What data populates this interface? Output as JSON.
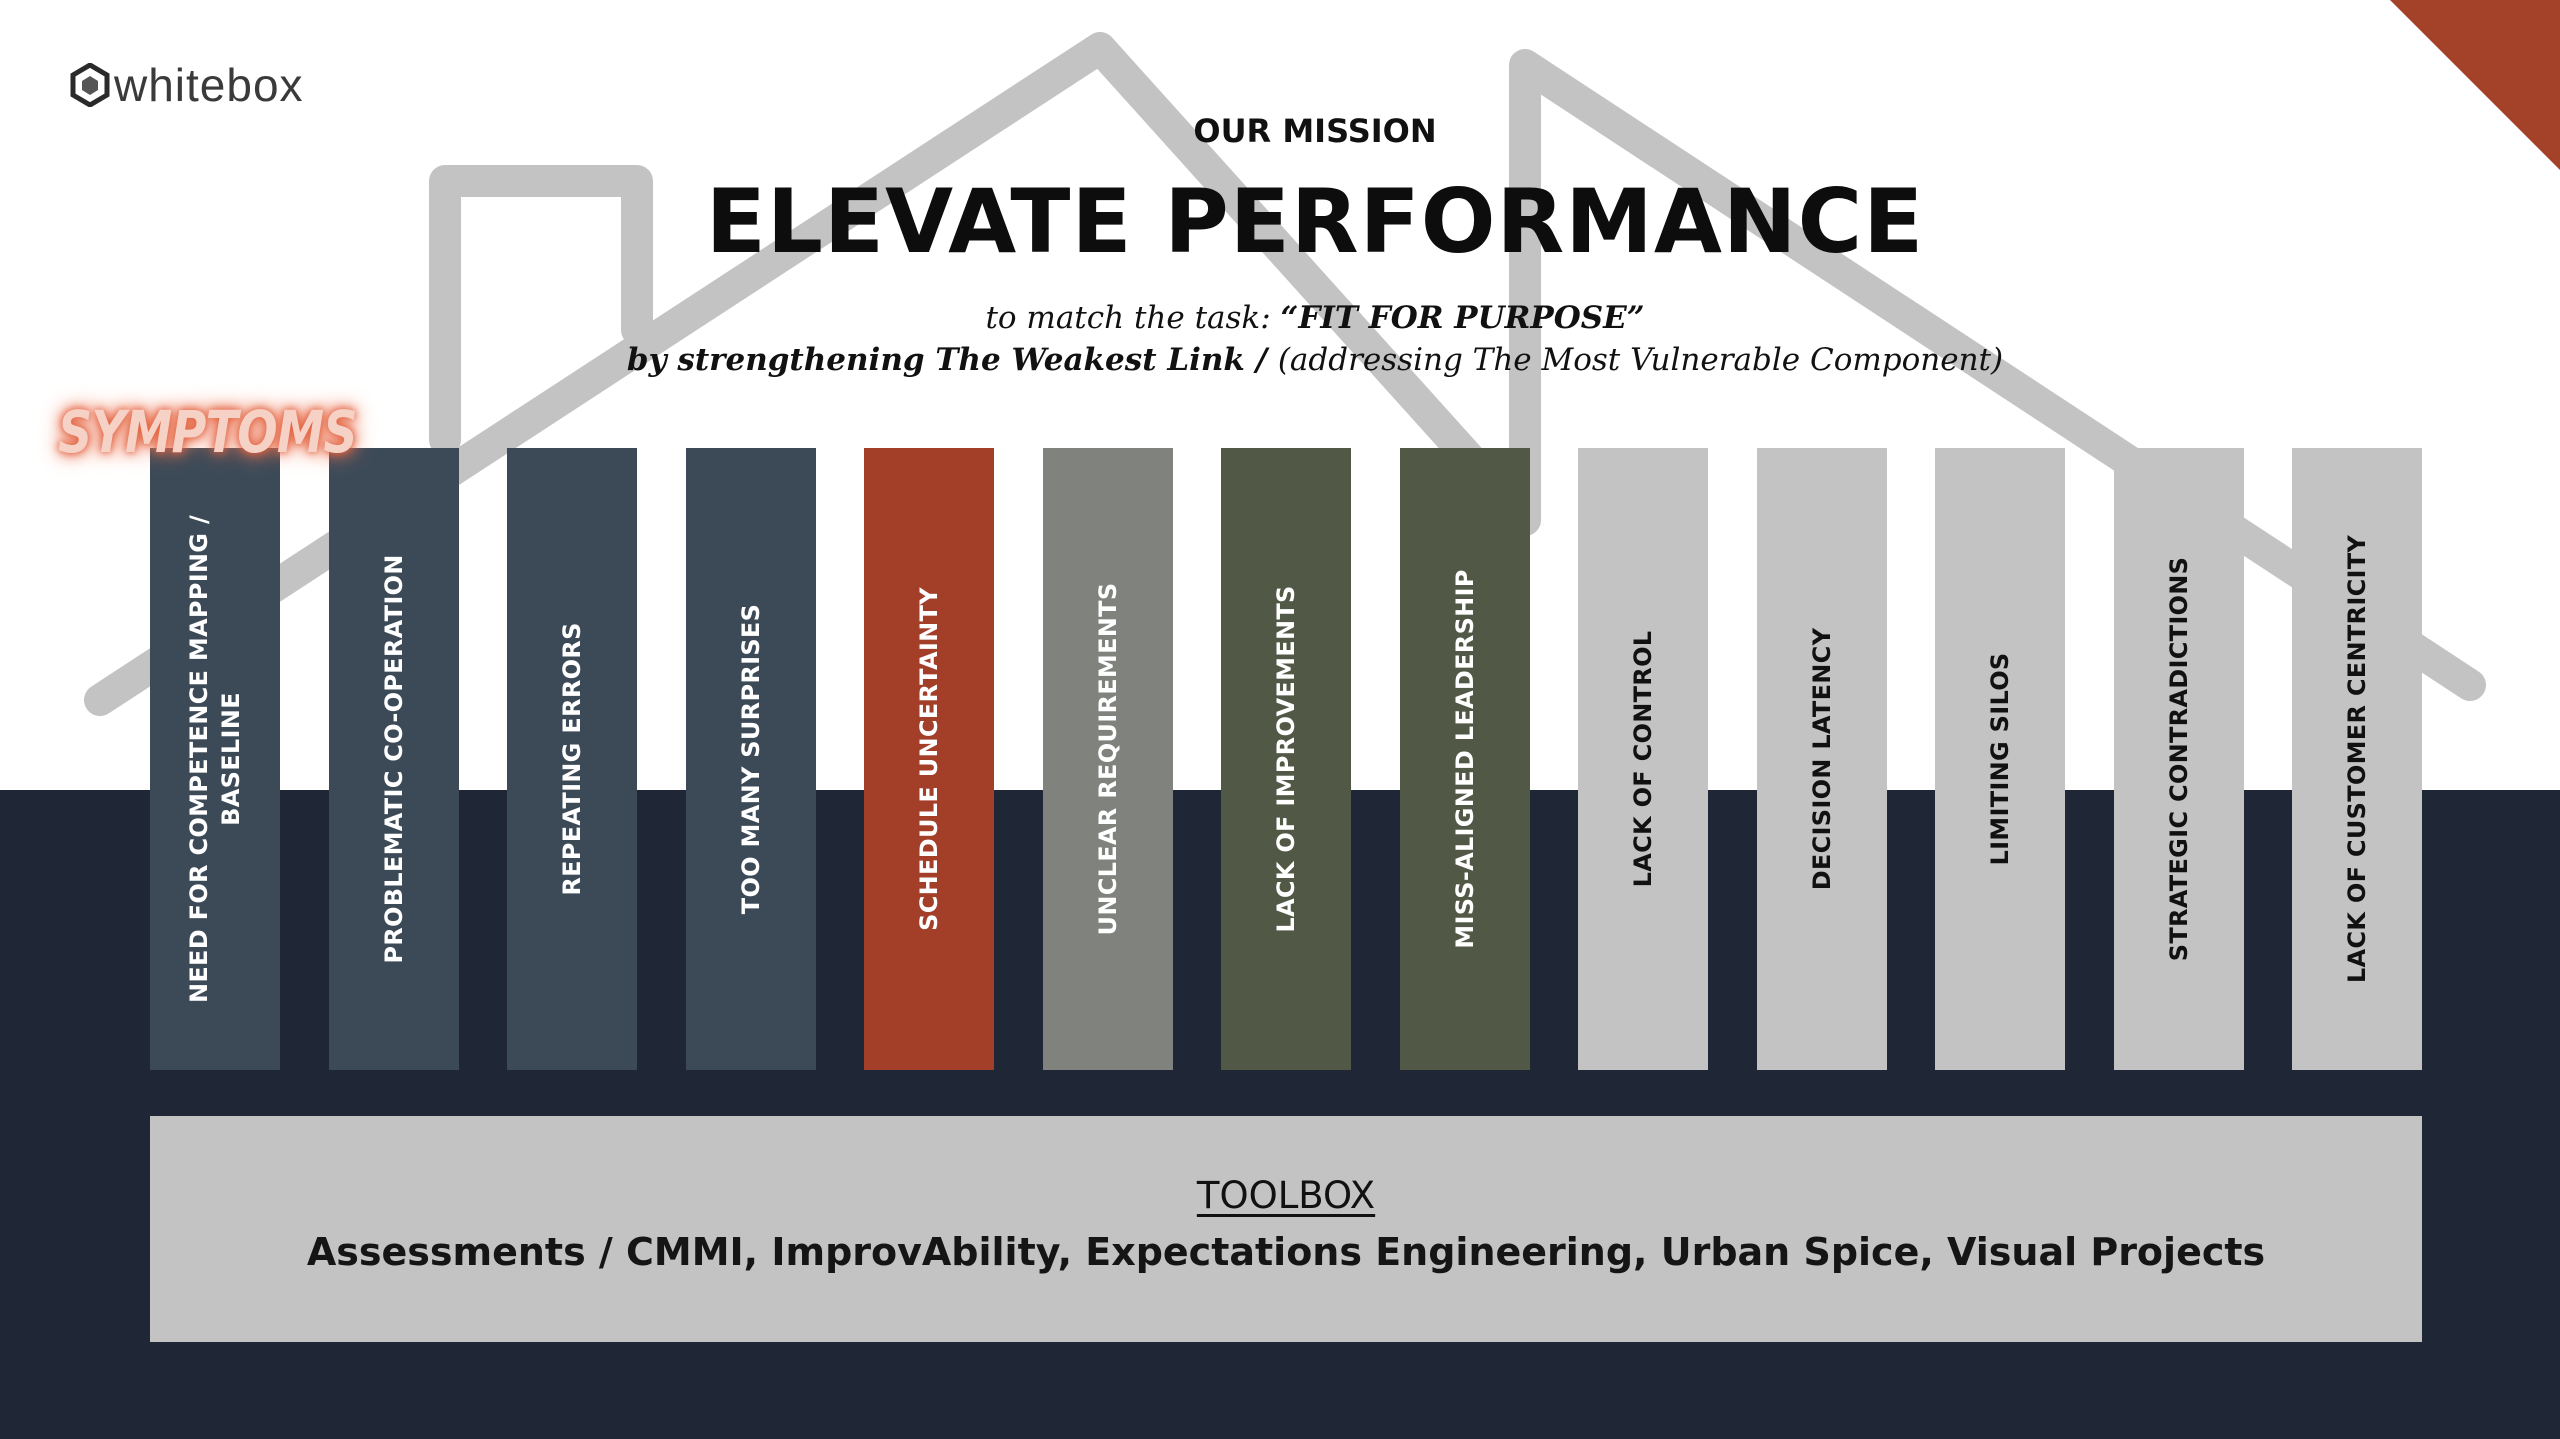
{
  "logo": {
    "text": "whitebox"
  },
  "header": {
    "kicker": "OUR MISSION",
    "title": "ELEVATE PERFORMANCE",
    "subtitle_line1": {
      "prefix": "to match the task: ",
      "emphasis": "“FIT FOR PURPOSE”"
    },
    "subtitle_line2": {
      "emphasis": "by strengthening The Weakest Link / ",
      "rest": "(addressing The Most Vulnerable Component)"
    }
  },
  "symptoms_label": "SYMPTOMS",
  "pillars": [
    {
      "label": "NEED FOR COMPETENCE MAPPING / BASELINE",
      "bg": "#3c4a58",
      "fg": "#ffffff"
    },
    {
      "label": "PROBLEMATIC   CO-OPERATION",
      "bg": "#3c4a58",
      "fg": "#ffffff"
    },
    {
      "label": "REPEATING ERRORS",
      "bg": "#3c4a58",
      "fg": "#ffffff"
    },
    {
      "label": "TOO MANY SURPRISES",
      "bg": "#3c4a58",
      "fg": "#ffffff"
    },
    {
      "label": "SCHEDULE UNCERTAINTY",
      "bg": "#a33f29",
      "fg": "#ffffff"
    },
    {
      "label": "UNCLEAR REQUIREMENTS",
      "bg": "#80827d",
      "fg": "#ffffff"
    },
    {
      "label": "LACK OF IMPROVEMENTS",
      "bg": "#525846",
      "fg": "#ffffff"
    },
    {
      "label": "MISS-ALIGNED LEADERSHIP",
      "bg": "#525846",
      "fg": "#ffffff"
    },
    {
      "label": "LACK OF CONTROL",
      "bg": "#c3c3c3",
      "fg": "#111111"
    },
    {
      "label": "DECISION LATENCY",
      "bg": "#c3c3c3",
      "fg": "#111111"
    },
    {
      "label": "LIMITING SILOS",
      "bg": "#c3c3c3",
      "fg": "#111111"
    },
    {
      "label": "STRATEGIC CONTRADICTIONS",
      "bg": "#c3c3c3",
      "fg": "#111111"
    },
    {
      "label": "LACK OF CUSTOMER CENTRICITY",
      "bg": "#c3c3c3",
      "fg": "#111111"
    }
  ],
  "toolbox": {
    "title": "TOOLBOX",
    "tools": "Assessments / CMMI, ImprovAbility, Expectations Engineering, Urban Spice, Visual Projects"
  },
  "colors": {
    "dark_band": "#1f2636",
    "accent": "#a34228",
    "roof": "#c3c3c3"
  }
}
